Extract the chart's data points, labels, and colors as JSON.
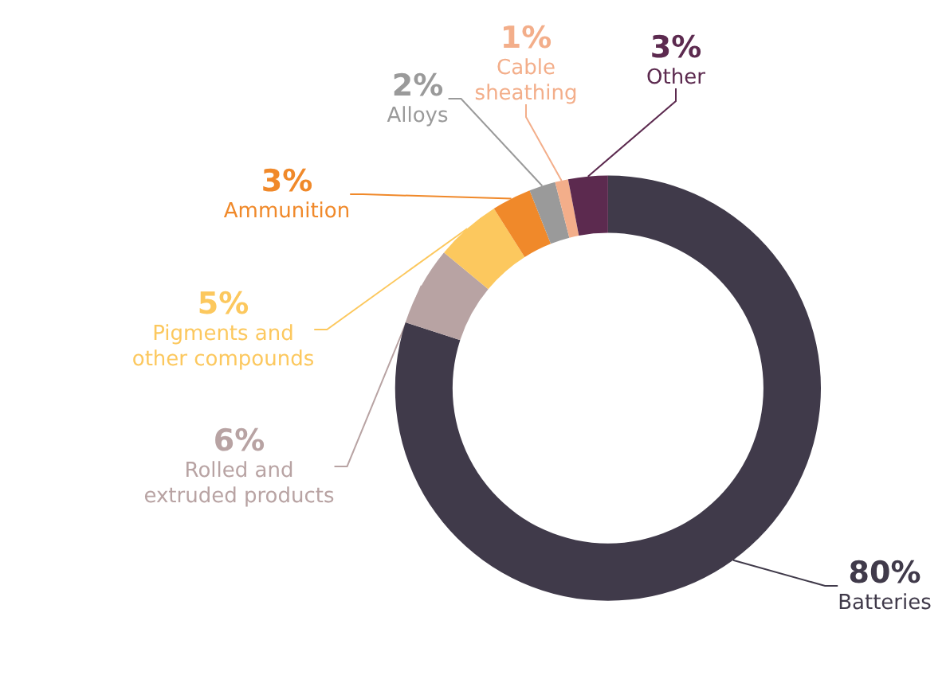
{
  "chart_data": {
    "type": "donut",
    "categories": [
      "Batteries",
      "Rolled and\nextruded products",
      "Pigments and\nother compounds",
      "Ammunition",
      "Alloys",
      "Cable\nsheathing",
      "Other"
    ],
    "values": [
      80,
      6,
      5,
      3,
      2,
      1,
      3
    ],
    "colors": [
      "#403a4a",
      "#b8a3a3",
      "#fcc85e",
      "#f0892a",
      "#9a9a9a",
      "#f3ae8a",
      "#5c2a4f"
    ],
    "value_labels": [
      "80%",
      "6%",
      "5%",
      "3%",
      "2%",
      "1%",
      "3%"
    ],
    "legend": false
  }
}
